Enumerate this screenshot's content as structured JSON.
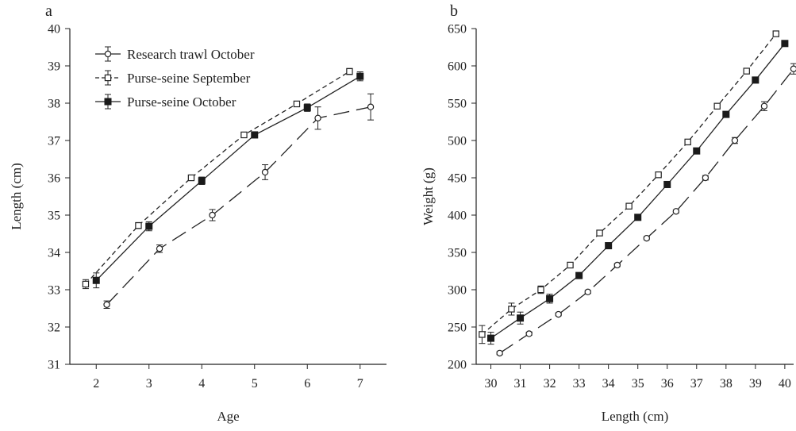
{
  "chart_data": [
    {
      "type": "line",
      "panel_label": "a",
      "xlabel": "Age",
      "ylabel": "Length (cm)",
      "xlim": [
        1.5,
        7.5
      ],
      "ylim": [
        31,
        40
      ],
      "xticks": [
        2,
        3,
        4,
        5,
        6,
        7
      ],
      "yticks": [
        31,
        32,
        33,
        34,
        35,
        36,
        37,
        38,
        39,
        40
      ],
      "legend": "top-left",
      "series": [
        {
          "name": "Research trawl October",
          "marker": "open-circle",
          "line": "long-dash",
          "x": [
            2.2,
            3.2,
            4.2,
            5.2,
            6.2,
            7.2
          ],
          "y": [
            32.6,
            34.1,
            35.0,
            36.15,
            37.6,
            37.9
          ],
          "err": [
            0.1,
            0.1,
            0.15,
            0.2,
            0.3,
            0.35
          ]
        },
        {
          "name": "Purse-seine September",
          "marker": "open-square",
          "line": "short-dash",
          "x": [
            1.8,
            2.8,
            3.8,
            4.8,
            5.8,
            6.8
          ],
          "y": [
            33.15,
            34.72,
            36.0,
            37.15,
            37.98,
            38.85
          ],
          "err": [
            0.12,
            0.08,
            0.06,
            0.06,
            0.06,
            0.08
          ]
        },
        {
          "name": "Purse-seine October",
          "marker": "filled-square",
          "line": "solid",
          "x": [
            2.0,
            3.0,
            4.0,
            5.0,
            6.0,
            7.0
          ],
          "y": [
            33.25,
            34.7,
            35.92,
            37.15,
            37.88,
            38.72
          ],
          "err": [
            0.2,
            0.12,
            0.1,
            0.08,
            0.1,
            0.12
          ]
        }
      ]
    },
    {
      "type": "line",
      "panel_label": "b",
      "xlabel": "Length (cm)",
      "ylabel": "Weight (g)",
      "xlim": [
        29.5,
        40.3
      ],
      "ylim": [
        200,
        650
      ],
      "xticks": [
        30,
        31,
        32,
        33,
        34,
        35,
        36,
        37,
        38,
        39,
        40
      ],
      "yticks": [
        200,
        250,
        300,
        350,
        400,
        450,
        500,
        550,
        600,
        650
      ],
      "series": [
        {
          "name": "Research trawl October",
          "marker": "open-circle",
          "line": "long-dash",
          "x": [
            30.3,
            31.3,
            32.3,
            33.3,
            34.3,
            35.3,
            36.3,
            37.3,
            38.3,
            39.3,
            40.3
          ],
          "y": [
            215,
            241,
            267,
            297,
            333,
            369,
            405,
            450,
            500,
            546,
            596
          ],
          "err": [
            2,
            2,
            2,
            2,
            2,
            2,
            2,
            3,
            4,
            6,
            7
          ]
        },
        {
          "name": "Purse-seine September",
          "marker": "open-square",
          "line": "short-dash",
          "x": [
            29.7,
            30.7,
            31.7,
            32.7,
            33.7,
            34.7,
            35.7,
            36.7,
            37.7,
            38.7,
            39.7
          ],
          "y": [
            240,
            274,
            300,
            333,
            376,
            412,
            454,
            498,
            546,
            593,
            643
          ],
          "err": [
            12,
            8,
            5,
            2,
            2,
            2,
            2,
            2,
            2,
            2,
            3
          ]
        },
        {
          "name": "Purse-seine October",
          "marker": "filled-square",
          "line": "solid",
          "x": [
            30.0,
            31.0,
            32.0,
            33.0,
            34.0,
            35.0,
            36.0,
            37.0,
            38.0,
            39.0,
            40.0
          ],
          "y": [
            235,
            262,
            288,
            319,
            359,
            397,
            441,
            486,
            535,
            581,
            630
          ],
          "err": [
            8,
            8,
            6,
            3,
            2,
            2,
            2,
            2,
            2,
            2,
            2
          ]
        }
      ]
    }
  ]
}
